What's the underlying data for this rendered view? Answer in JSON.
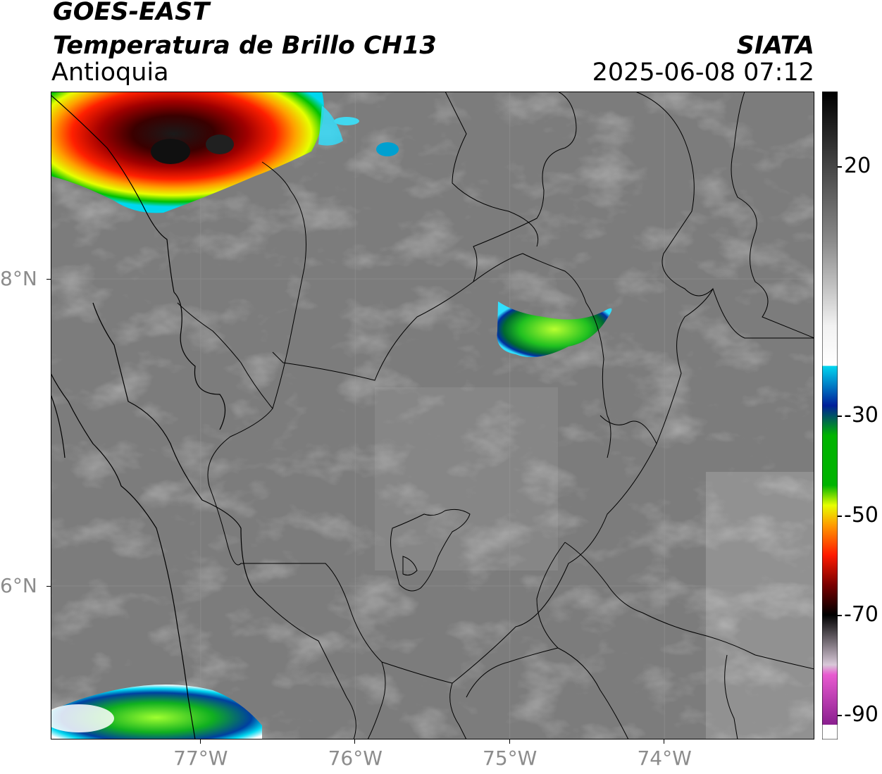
{
  "header": {
    "title_line1": "GOES-EAST",
    "title_line2": "Temperatura de Brillo CH13",
    "region": "Antioquia",
    "organization": "SIATA",
    "timestamp": "2025-06-08 07:12"
  },
  "map": {
    "x_ticks": [
      {
        "lon": -77,
        "label": "77°W"
      },
      {
        "lon": -76,
        "label": "76°W"
      },
      {
        "lon": -75,
        "label": "75°W"
      },
      {
        "lon": -74,
        "label": "74°W"
      }
    ],
    "y_ticks": [
      {
        "lat": 8,
        "label": "8°N"
      },
      {
        "lat": 6,
        "label": "6°N"
      }
    ],
    "lon_range": [
      -77.97,
      -73.03
    ],
    "lat_range": [
      5.0,
      9.22
    ]
  },
  "colorbar": {
    "range": [
      -95,
      35
    ],
    "ticks": [
      {
        "value": 20,
        "label": "20"
      },
      {
        "value": -30,
        "label": "-30"
      },
      {
        "value": -50,
        "label": "-50"
      },
      {
        "value": -70,
        "label": "-70"
      },
      {
        "value": -90,
        "label": "-90"
      }
    ],
    "colors": {
      "warm_dark": "#202020",
      "gray_mid": "#8a8a8a",
      "gray_light": "#f2f2f2",
      "cyan": "#00d7f0",
      "blue": "#001f9a",
      "green": "#00b400",
      "yellow": "#e6ff00",
      "orange": "#ff9b00",
      "red": "#ff1a00",
      "dark_red": "#7a0000",
      "black": "#000000",
      "pink": "#e85ad0",
      "purple": "#8a1f8f"
    }
  }
}
